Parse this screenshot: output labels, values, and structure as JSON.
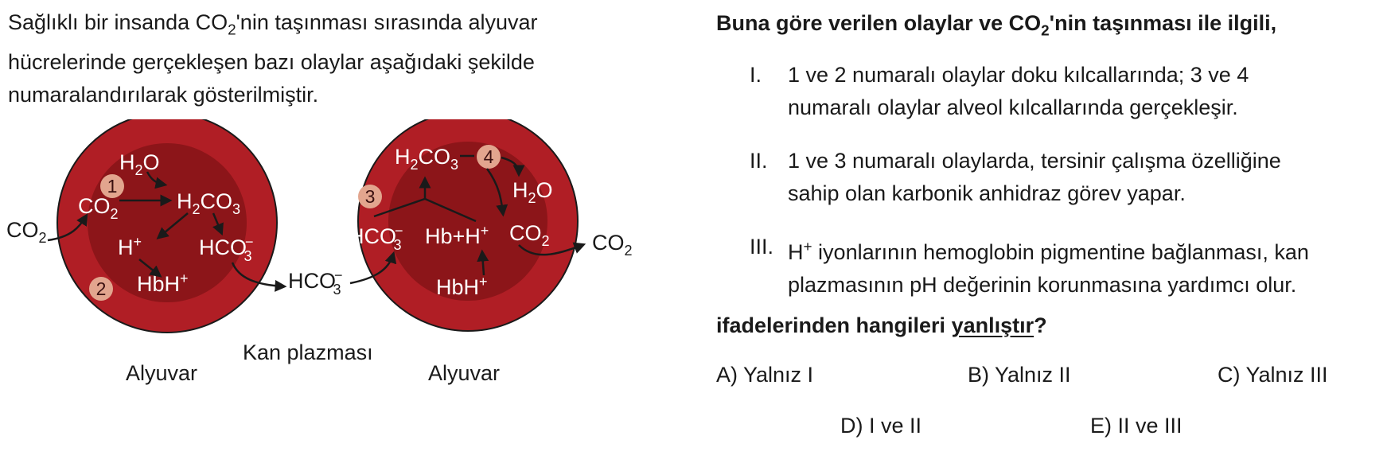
{
  "intro": {
    "line1_a": "Sağlıklı bir insanda CO",
    "line1_sub": "2",
    "line1_b": "'nin taşınması sırasında alyuvar",
    "line2": "hücrelerinde gerçekleşen bazı olaylar aşağıdaki şekilde",
    "line3": "numaralandırılarak gösterilmiştir."
  },
  "diagram": {
    "colors": {
      "cell_outer": "#b01e25",
      "cell_inner": "#8c1519",
      "badge": "#e2a58e"
    },
    "left_cell": {
      "h2o": "H",
      "h2o_sub": "2",
      "h2o_o": "O",
      "co2": "CO",
      "co2_sub": "2",
      "h2co3": "H",
      "h2co3_sub": "2",
      "h2co3_co": "CO",
      "h2co3_sub2": "3",
      "h_plus": "H",
      "h_plus_sup": "+",
      "hco3": "HCO",
      "hco3_sub": "3",
      "hco3_sup": "−",
      "hbh": "HbH",
      "hbh_sup": "+",
      "badge1": "1",
      "badge2": "2",
      "caption": "Alyuvar"
    },
    "outside_co2": "CO",
    "outside_co2_sub": "2",
    "plasma_hco3": "HCO",
    "plasma_hco3_sub": "3",
    "plasma_hco3_sup": "−",
    "plasma_caption": "Kan plazması",
    "right_cell": {
      "h2co3": "H",
      "h2co3_sub": "2",
      "h2co3_co": "CO",
      "h2co3_sub2": "3",
      "h2o": "H",
      "h2o_sub": "2",
      "h2o_o": "O",
      "hco3": "HCO",
      "hco3_sub": "3",
      "hco3_sup": "−",
      "hb_h": "Hb+H",
      "hb_h_sup": "+",
      "co2": "CO",
      "co2_sub": "2",
      "hbh": "HbH",
      "hbh_sup": "+",
      "badge3": "3",
      "badge4": "4",
      "caption": "Alyuvar"
    },
    "exit_co2": "CO",
    "exit_co2_sub": "2"
  },
  "question": {
    "lead_a": "Buna göre verilen olaylar ve CO",
    "lead_sub": "2",
    "lead_b": "'nin taşınması ile ilgili,",
    "statements": [
      {
        "num": "I.",
        "text_1": "1 ve 2 numaralı olaylar doku kılcallarında; 3 ve 4",
        "text_2": "numaralı olaylar alveol kılcallarında gerçekleşir."
      },
      {
        "num": "II.",
        "text_1": "1 ve 3 numaralı olaylarda, tersinir çalışma özelliğine",
        "text_2": "sahip olan karbonik anhidraz görev yapar."
      },
      {
        "num": "III.",
        "text_1a": "H",
        "text_1sup": "+",
        "text_1b": " iyonlarının hemoglobin pigmentine bağlanması, kan",
        "text_2": "plazmasının pH değerinin korunmasına yardımcı olur."
      }
    ],
    "end_a": "ifadelerinden hangileri ",
    "end_u": "yanlıştır",
    "end_b": "?",
    "options": {
      "A": "A) Yalnız I",
      "B": "B) Yalnız II",
      "C": "C) Yalnız III",
      "D": "D) I ve II",
      "E": "E) II ve III"
    }
  }
}
